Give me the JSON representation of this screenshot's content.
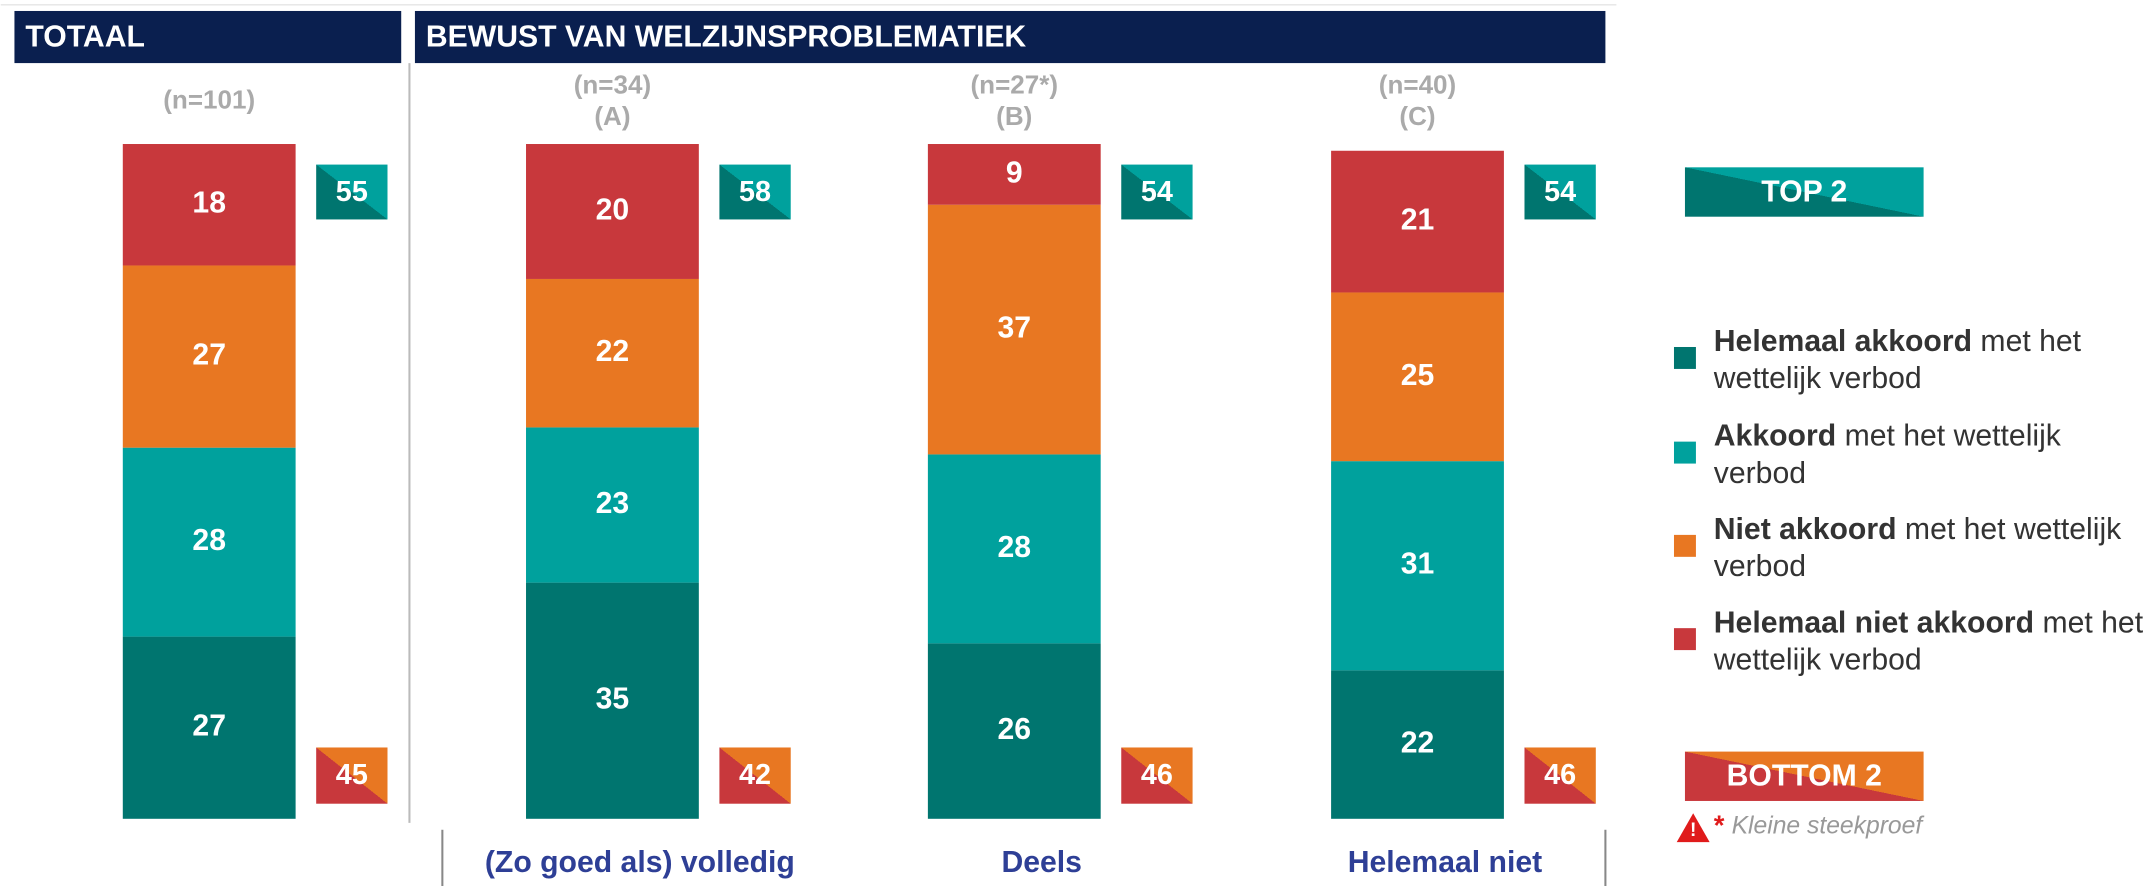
{
  "headers": [
    "TOTAAL",
    "BEWUST VAN WELZIJNSPROBLEMATIEK"
  ],
  "chart_data": {
    "type": "stacked_bar",
    "categories": [
      "(n=101)",
      "(n=34)",
      "(n=27*)",
      "(n=40)"
    ],
    "sublabels": [
      null,
      "(A)",
      "(B)",
      "(C)"
    ],
    "group_labels": [
      null,
      "(Zo goed als) volledig",
      "Deels",
      "Helemaal niet"
    ],
    "ylim": [
      0,
      100
    ],
    "series": [
      {
        "name": "Helemaal akkoord",
        "name_suffix": "met het wettelijk verbod",
        "color": "#00756f",
        "values": [
          27,
          35,
          26,
          22
        ]
      },
      {
        "name": "Akkoord",
        "name_suffix": "met het wettelijk verbod",
        "color": "#00a19d",
        "values": [
          28,
          23,
          28,
          31
        ]
      },
      {
        "name": "Niet akkoord",
        "name_suffix": "met het wettelijk verbod",
        "color": "#e87722",
        "values": [
          27,
          22,
          37,
          25
        ]
      },
      {
        "name": "Helemaal niet akkoord",
        "name_suffix": "met het wettelijk verbod",
        "color": "#c8383c",
        "values": [
          18,
          20,
          9,
          21
        ]
      }
    ],
    "top2": {
      "label": "TOP 2",
      "values": [
        55,
        58,
        54,
        54
      ]
    },
    "bottom2": {
      "label": "BOTTOM 2",
      "values": [
        45,
        42,
        46,
        46
      ]
    },
    "note_mark": "*",
    "note": "Kleine steekproef"
  }
}
